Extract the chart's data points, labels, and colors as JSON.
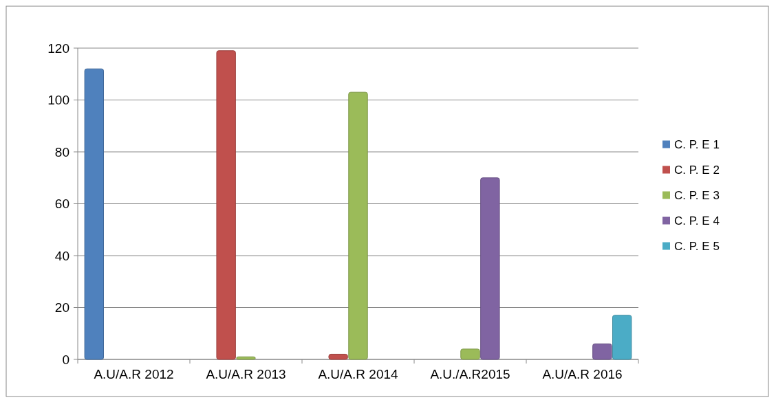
{
  "chart_data": {
    "type": "bar",
    "categories": [
      "A.U/A.R 2012",
      "A.U/A.R 2013",
      "A.U/A.R 2014",
      "A.U./A.R2015",
      "A.U/A.R 2016"
    ],
    "series": [
      {
        "name": "C. P. E 1",
        "color": "#4f81bd",
        "values": [
          112,
          null,
          null,
          null,
          null
        ]
      },
      {
        "name": "C. P. E 2",
        "color": "#c0504d",
        "values": [
          null,
          119,
          2,
          null,
          null
        ]
      },
      {
        "name": "C. P. E 3",
        "color": "#9bbb59",
        "values": [
          null,
          1,
          103,
          4,
          null
        ]
      },
      {
        "name": "C. P. E 4",
        "color": "#8064a2",
        "values": [
          null,
          null,
          null,
          70,
          6
        ]
      },
      {
        "name": "C. P. E 5",
        "color": "#4bacc6",
        "values": [
          null,
          null,
          null,
          null,
          17
        ]
      }
    ],
    "ylim": [
      0,
      120
    ],
    "yticks": [
      0,
      20,
      40,
      60,
      80,
      100,
      120
    ],
    "grid": "y",
    "legend": "right"
  }
}
